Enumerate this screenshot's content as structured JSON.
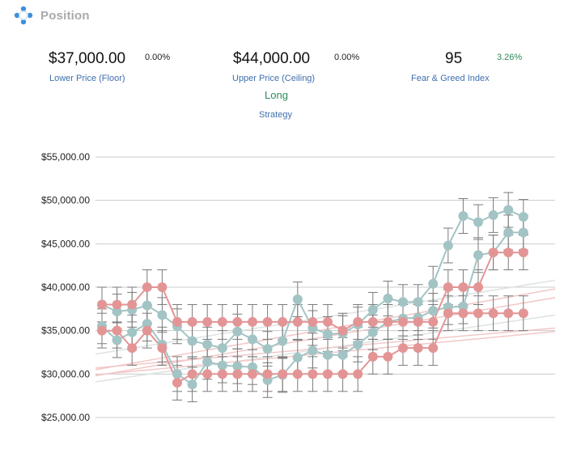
{
  "header": {
    "title": "Position",
    "logo_icon": "crosshair-dots-icon"
  },
  "stats": {
    "lower": {
      "value": "$37,000.00",
      "change": "0.00%",
      "label": "Lower Price (Floor)"
    },
    "upper": {
      "value": "$44,000.00",
      "change": "0.00%",
      "label": "Upper Price (Ceiling)"
    },
    "fear_greed": {
      "value": "95",
      "change": "3.26%",
      "label": "Fear & Greed Index",
      "change_color": "#2e8b57"
    }
  },
  "strategy": {
    "value": "Long",
    "label": "Strategy",
    "value_color": "#2e8b57"
  },
  "colors": {
    "green_series": "#a3c4c4",
    "red_series": "#e39595",
    "grid": "#cccccc",
    "error_bars": "#7a7a7a"
  },
  "chart_data": {
    "type": "line",
    "ylim": [
      25000,
      55000
    ],
    "yticks": [
      "$25,000.00",
      "$30,000.00",
      "$35,000.00",
      "$40,000.00",
      "$45,000.00",
      "$50,000.00",
      "$55,000.00"
    ],
    "grid": true,
    "series": [
      {
        "color": "#a3c4c4",
        "values": [
          38000,
          37200,
          37400,
          37900,
          36800,
          35500,
          33800,
          33400,
          33000,
          34900,
          34000,
          32900,
          33800,
          38600,
          35300,
          34600,
          34700,
          35700,
          37400,
          38700,
          38300,
          38300,
          40400,
          44800,
          48200,
          47500,
          48300,
          48900,
          48100
        ]
      },
      {
        "color": "#a3c4c4",
        "values": [
          35500,
          33900,
          34800,
          35800,
          33400,
          30000,
          28800,
          31400,
          31000,
          30900,
          30800,
          29300,
          29900,
          31900,
          32700,
          32200,
          32200,
          33400,
          34800,
          36000,
          36400,
          36500,
          37300,
          37700,
          37800,
          43700,
          44000,
          46300,
          46300
        ]
      },
      {
        "color": "#e39595",
        "values": [
          35000,
          35000,
          33000,
          35000,
          33000,
          29000,
          30000,
          30000,
          30000,
          30000,
          30000,
          30000,
          30000,
          30000,
          30000,
          30000,
          30000,
          30000,
          32000,
          32000,
          33000,
          33000,
          33000,
          37000,
          37000,
          37000,
          37000,
          37000,
          37000
        ]
      },
      {
        "color": "#e39595",
        "values": [
          38000,
          38000,
          38000,
          40000,
          40000,
          36000,
          36000,
          36000,
          36000,
          36000,
          36000,
          36000,
          36000,
          36000,
          36000,
          36000,
          35000,
          36000,
          36000,
          36000,
          36000,
          36000,
          36000,
          40000,
          40000,
          40000,
          44000,
          44000,
          44000
        ]
      }
    ],
    "error_bar": 2000,
    "trendlines": [
      {
        "color": "#dde3e3",
        "from": 32300,
        "to": 40800
      },
      {
        "color": "#dde3e3",
        "from": 29100,
        "to": 36800
      },
      {
        "color": "#f2c8c8",
        "from": 30500,
        "to": 39800
      },
      {
        "color": "#f2c8c8",
        "from": 29800,
        "to": 38800
      },
      {
        "color": "#f2c8c8",
        "from": 30700,
        "to": 35300
      },
      {
        "color": "#f2c8c8",
        "from": 29900,
        "to": 34900
      }
    ]
  }
}
